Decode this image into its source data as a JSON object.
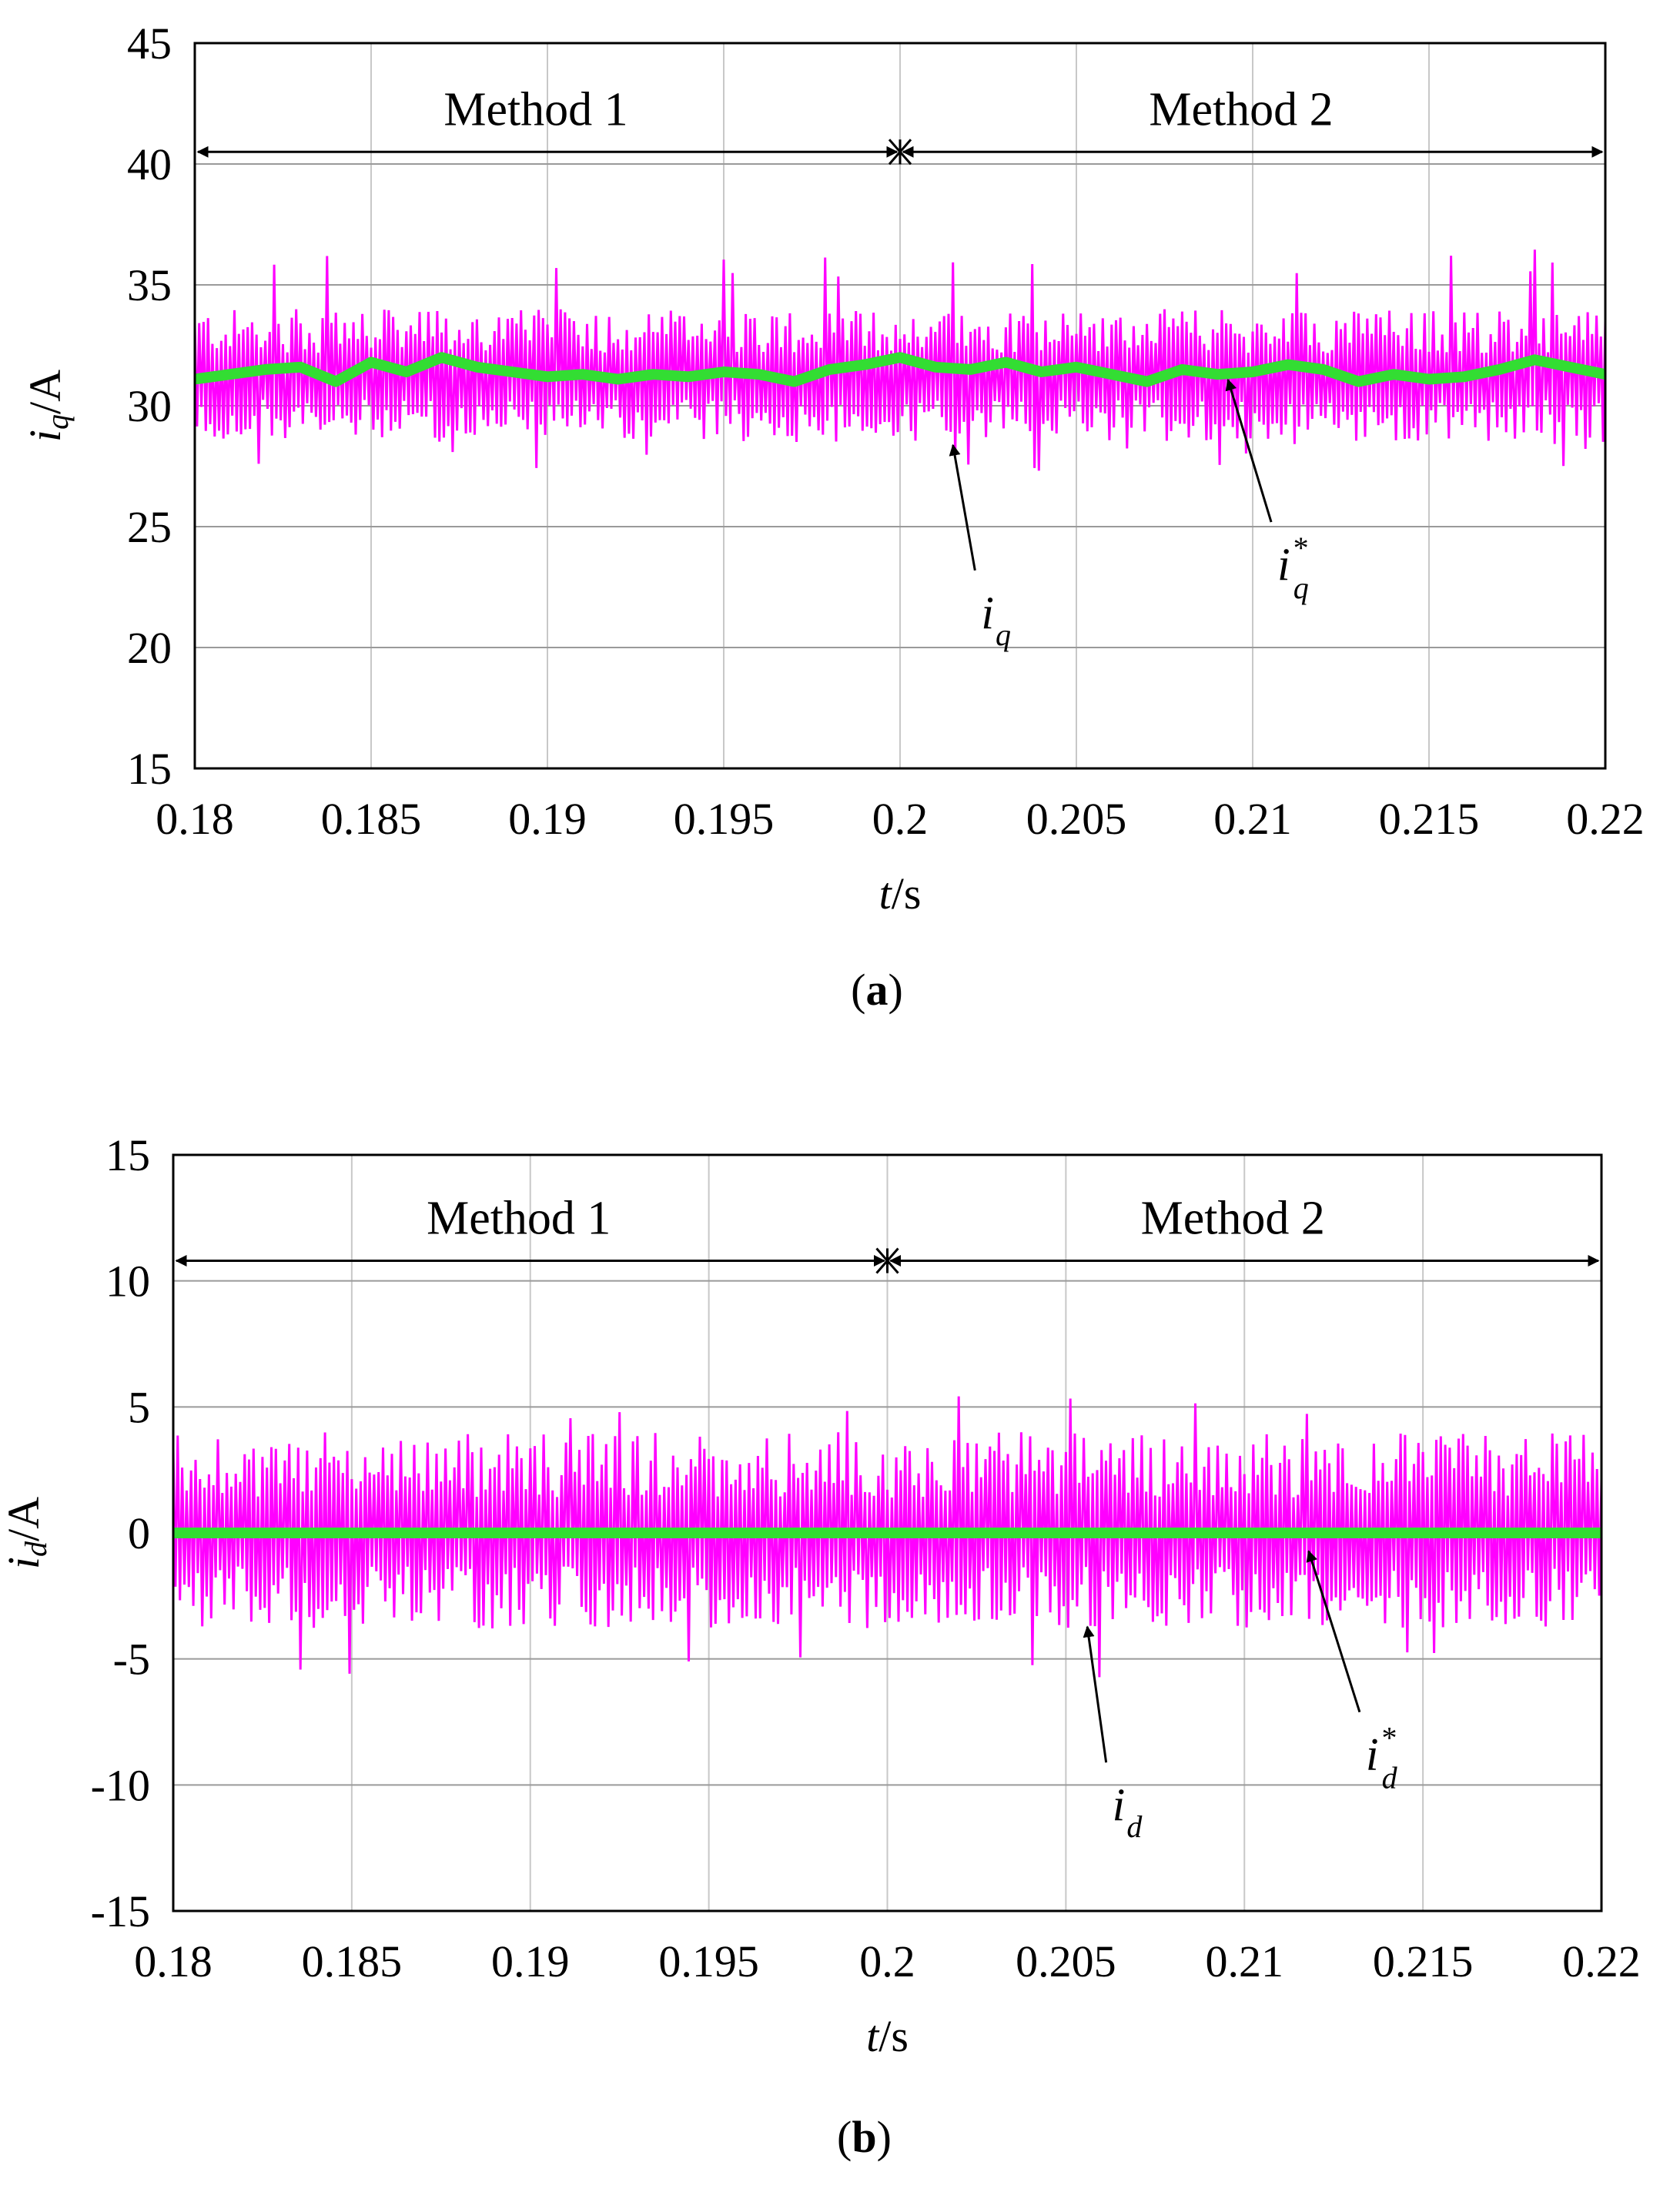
{
  "chart_data": [
    {
      "type": "line",
      "caption_letter": "a",
      "xlabel_var": "t",
      "xlabel_unit": "/s",
      "ylabel_var": "i",
      "ylabel_sub": "q",
      "ylabel_unit": "/A",
      "xlim": [
        0.18,
        0.22
      ],
      "ylim": [
        15,
        45
      ],
      "xticks": [
        0.18,
        0.185,
        0.19,
        0.195,
        0.2,
        0.205,
        0.21,
        0.215,
        0.22
      ],
      "xtick_labels": [
        "0.18",
        "0.185",
        "0.19",
        "0.195",
        "0.2",
        "0.205",
        "0.21",
        "0.215",
        "0.22"
      ],
      "yticks": [
        15,
        20,
        25,
        30,
        35,
        40,
        45
      ],
      "ytick_labels": [
        "15",
        "20",
        "25",
        "30",
        "35",
        "40",
        "45"
      ],
      "grid": true,
      "regions": [
        {
          "label": "Method 1",
          "x_start": 0.18,
          "x_end": 0.2,
          "y": 40.5
        },
        {
          "label": "Method 2",
          "x_start": 0.2,
          "x_end": 0.22,
          "y": 40.5
        }
      ],
      "series": [
        {
          "name": "i_q",
          "color": "#ff00ff",
          "mean": 31.2,
          "ripple_low": 28.5,
          "ripple_high": 34.0,
          "spike_min": 27.3,
          "spike_max": 36.5
        },
        {
          "name": "i_q*",
          "color": "#33dd33",
          "x": [
            0.18,
            0.181,
            0.182,
            0.183,
            0.184,
            0.185,
            0.186,
            0.187,
            0.188,
            0.189,
            0.19,
            0.191,
            0.192,
            0.193,
            0.194,
            0.195,
            0.196,
            0.197,
            0.198,
            0.199,
            0.2,
            0.201,
            0.202,
            0.203,
            0.204,
            0.205,
            0.206,
            0.207,
            0.208,
            0.209,
            0.21,
            0.211,
            0.212,
            0.213,
            0.214,
            0.215,
            0.216,
            0.217,
            0.218,
            0.219,
            0.22
          ],
          "y": [
            31.1,
            31.3,
            31.5,
            31.6,
            31.0,
            31.8,
            31.4,
            32.0,
            31.6,
            31.4,
            31.2,
            31.3,
            31.1,
            31.3,
            31.2,
            31.4,
            31.3,
            31.0,
            31.5,
            31.7,
            32.0,
            31.6,
            31.5,
            31.8,
            31.4,
            31.6,
            31.3,
            31.0,
            31.5,
            31.3,
            31.4,
            31.7,
            31.5,
            31.0,
            31.3,
            31.1,
            31.2,
            31.5,
            31.9,
            31.6,
            31.3
          ]
        }
      ],
      "annotations": [
        {
          "base": "i",
          "sub": "q",
          "star": false,
          "arrow_tip": [
            0.2015,
            28.5
          ],
          "text_at": [
            0.2023,
            20.8
          ]
        },
        {
          "base": "i",
          "sub": "q",
          "star": true,
          "arrow_tip": [
            0.2093,
            31.2
          ],
          "text_at": [
            0.2107,
            22.8
          ]
        }
      ]
    },
    {
      "type": "line",
      "caption_letter": "b",
      "xlabel_var": "t",
      "xlabel_unit": "/s",
      "ylabel_var": "i",
      "ylabel_sub": "d",
      "ylabel_unit": "/A",
      "xlim": [
        0.18,
        0.22
      ],
      "ylim": [
        -15,
        15
      ],
      "xticks": [
        0.18,
        0.185,
        0.19,
        0.195,
        0.2,
        0.205,
        0.21,
        0.215,
        0.22
      ],
      "xtick_labels": [
        "0.18",
        "0.185",
        "0.19",
        "0.195",
        "0.2",
        "0.205",
        "0.21",
        "0.215",
        "0.22"
      ],
      "yticks": [
        -15,
        -10,
        -5,
        0,
        5,
        10,
        15
      ],
      "ytick_labels": [
        "-15",
        "-10",
        "-5",
        "0",
        "5",
        "10",
        "15"
      ],
      "grid": true,
      "regions": [
        {
          "label": "Method 1",
          "x_start": 0.18,
          "x_end": 0.2,
          "y": 10.8
        },
        {
          "label": "Method 2",
          "x_start": 0.2,
          "x_end": 0.22,
          "y": 10.8
        }
      ],
      "series": [
        {
          "name": "i_d",
          "color": "#ff00ff",
          "mean": 0.0,
          "ripple_low": -3.8,
          "ripple_high": 4.0,
          "spike_min": -5.8,
          "spike_max": 5.6
        },
        {
          "name": "i_d*",
          "color": "#33dd33",
          "x": [
            0.18,
            0.22
          ],
          "y": [
            0,
            0
          ]
        }
      ],
      "annotations": [
        {
          "base": "i",
          "sub": "d",
          "star": false,
          "arrow_tip": [
            0.2056,
            -3.6
          ],
          "text_at": [
            0.2063,
            -11.4
          ]
        },
        {
          "base": "i",
          "sub": "d",
          "star": true,
          "arrow_tip": [
            0.2118,
            -0.6
          ],
          "text_at": [
            0.2134,
            -9.4
          ]
        }
      ]
    }
  ]
}
